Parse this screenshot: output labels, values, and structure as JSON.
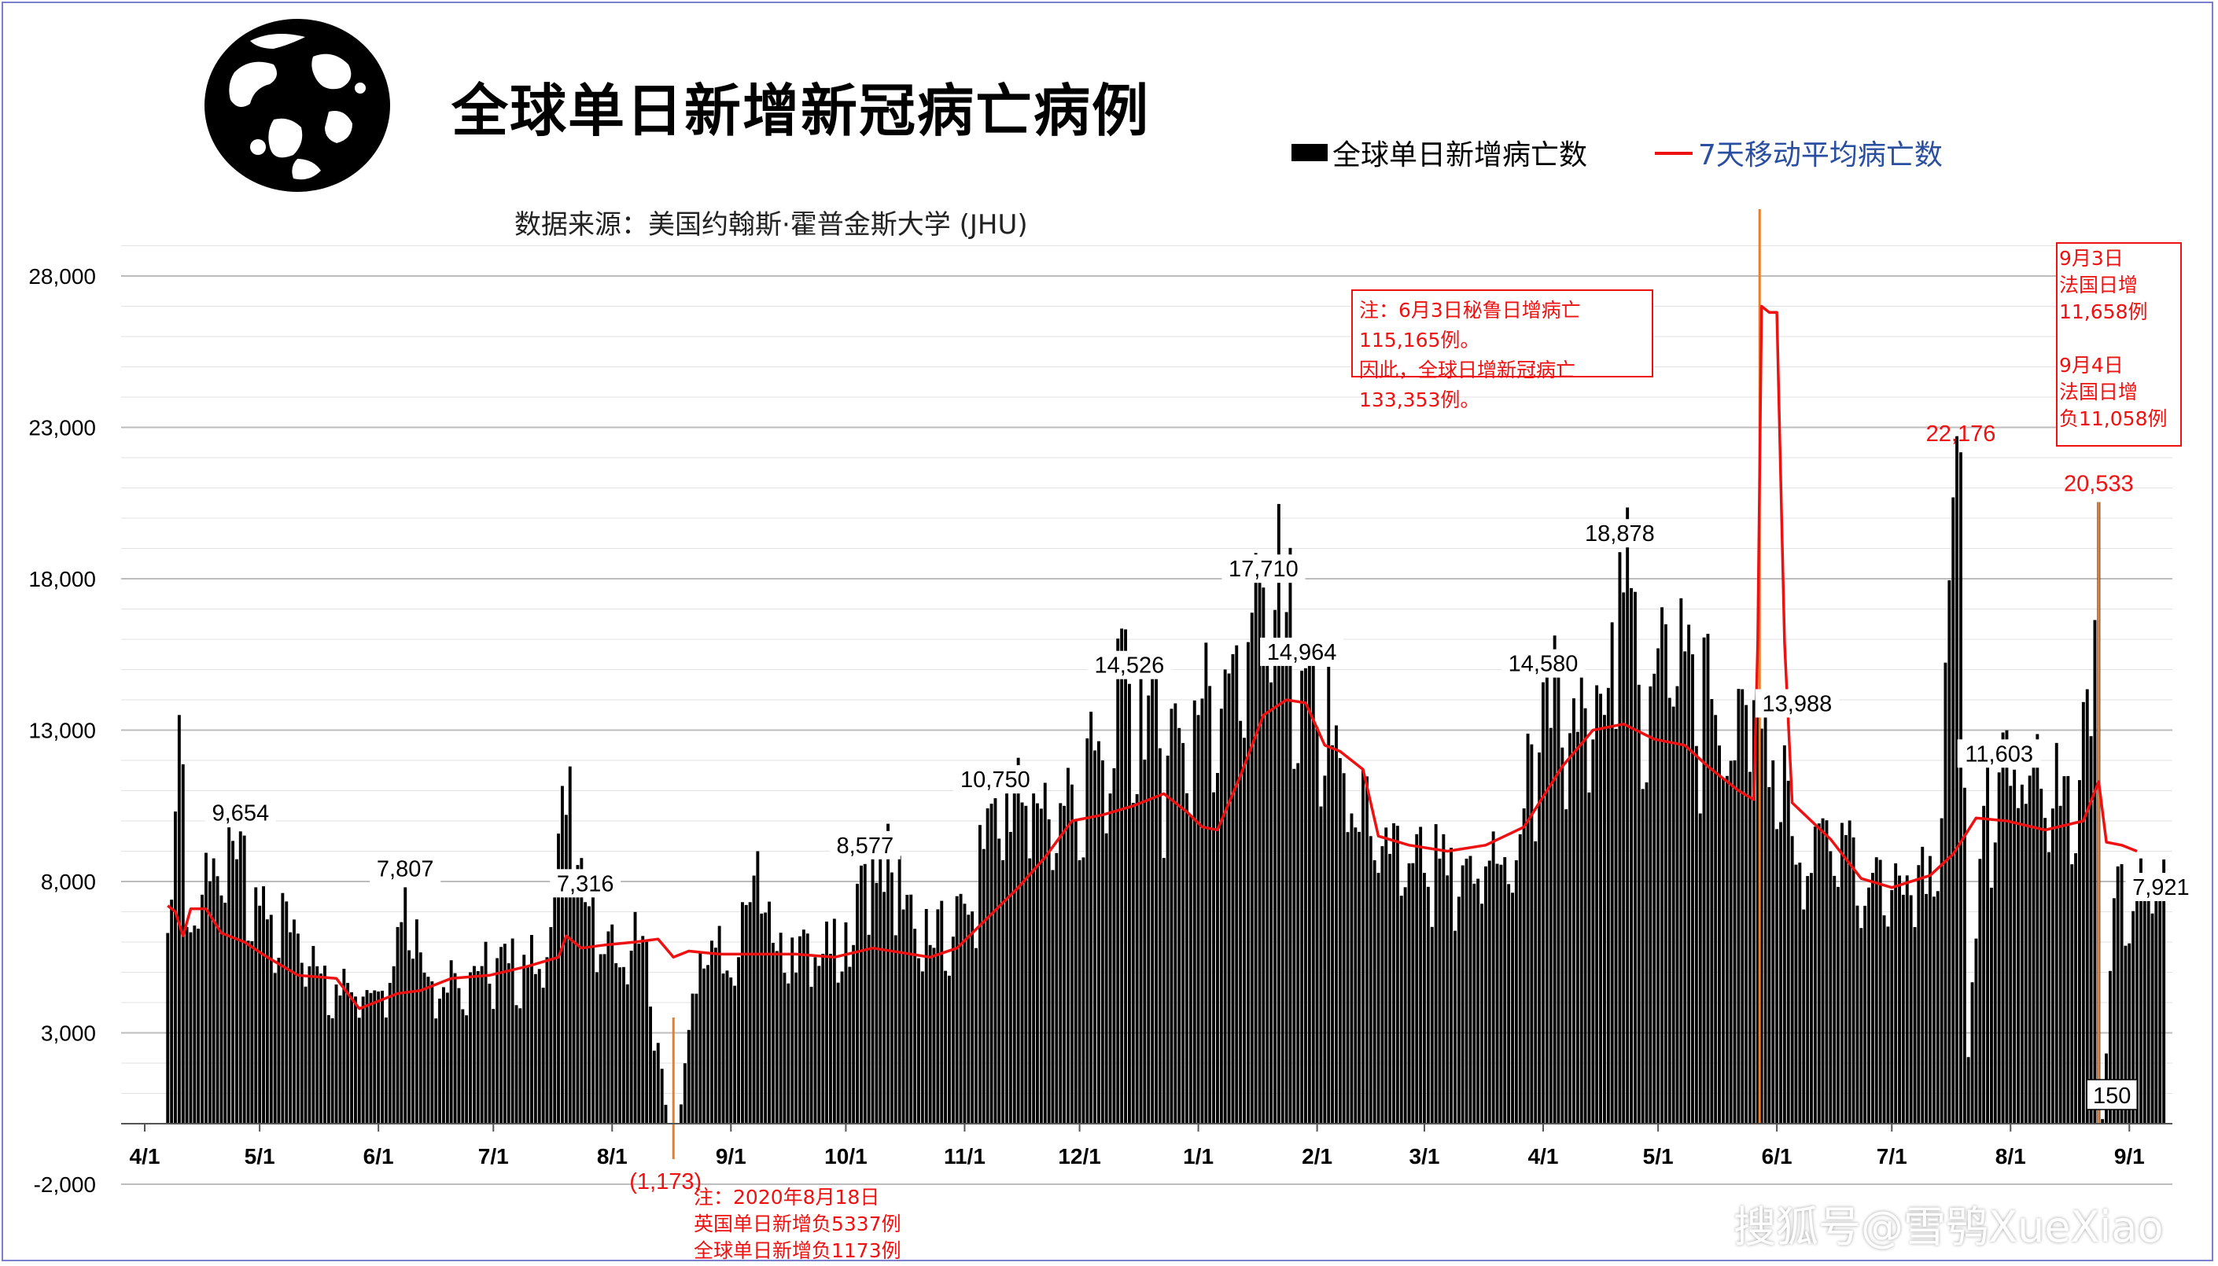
{
  "header": {
    "title": "全球单日新增新冠病亡病例",
    "source": "数据来源：美国约翰斯·霍普金斯大学 (JHU)"
  },
  "legend": {
    "bar_label": "全球单日新增病亡数",
    "line_label": "7天移动平均病亡数",
    "bar_color": "#000000",
    "line_color": "#ee1111"
  },
  "notes": {
    "peru_line1": "注：6月3日秘鲁日增病亡115,165例。",
    "peru_line2": "因此，全球日增新冠病亡133,353例。",
    "france": [
      "9月3日",
      "法国日增",
      "11,658例",
      "",
      "9月4日",
      "法国日增",
      "负11,058例"
    ],
    "uk": [
      "注：2020年8月18日",
      "英国单日新增负5337例",
      "全球单日新增负1173例"
    ]
  },
  "watermark": "搜狐号@雪鸮XueXiao",
  "chart_data": {
    "type": "bar",
    "title": "全球单日新增新冠病亡病例",
    "ylim": [
      -2000,
      30000
    ],
    "y_ticks": [
      "-2,000",
      "3,000",
      "8,000",
      "13,000",
      "18,000",
      "23,000",
      "28,000"
    ],
    "y_tick_values": [
      -2000,
      3000,
      8000,
      13000,
      18000,
      23000,
      28000
    ],
    "x_ticks": [
      "4/1",
      "5/1",
      "6/1",
      "7/1",
      "8/1",
      "9/1",
      "10/1",
      "11/1",
      "12/1",
      "1/1",
      "2/1",
      "3/1",
      "4/1",
      "5/1",
      "6/1",
      "7/1",
      "8/1",
      "9/1"
    ],
    "x_tick_days": [
      0,
      30,
      61,
      91,
      122,
      153,
      183,
      214,
      244,
      275,
      306,
      334,
      365,
      395,
      426,
      456,
      487,
      518
    ],
    "x_range_days": [
      0,
      528
    ],
    "grid": true,
    "series": [
      {
        "name": "全球单日新增病亡数",
        "type": "bar",
        "color": "#000000",
        "points": [
          [
            7,
            7400
          ],
          [
            9,
            13500
          ],
          [
            11,
            6500
          ],
          [
            25,
            9654
          ],
          [
            30,
            7200
          ],
          [
            45,
            5200
          ],
          [
            55,
            4200
          ],
          [
            65,
            5200
          ],
          [
            68,
            7807
          ],
          [
            75,
            4700
          ],
          [
            85,
            5000
          ],
          [
            95,
            5300
          ],
          [
            105,
            5500
          ],
          [
            111,
            11800
          ],
          [
            115,
            7316
          ],
          [
            120,
            5600
          ],
          [
            130,
            6200
          ],
          [
            138,
            -1173
          ],
          [
            145,
            5700
          ],
          [
            155,
            5500
          ],
          [
            160,
            9000
          ],
          [
            165,
            5700
          ],
          [
            175,
            5500
          ],
          [
            185,
            5900
          ],
          [
            188,
            8577
          ],
          [
            195,
            8300
          ],
          [
            205,
            5900
          ],
          [
            215,
            6900
          ],
          [
            222,
            10750
          ],
          [
            230,
            10500
          ],
          [
            240,
            10500
          ],
          [
            250,
            12000
          ],
          [
            257,
            14526
          ],
          [
            265,
            12400
          ],
          [
            275,
            13500
          ],
          [
            285,
            15800
          ],
          [
            292,
            17710
          ],
          [
            298,
            16900
          ],
          [
            302,
            14964
          ],
          [
            310,
            12500
          ],
          [
            320,
            9500
          ],
          [
            330,
            8600
          ],
          [
            340,
            8200
          ],
          [
            350,
            8500
          ],
          [
            358,
            8700
          ],
          [
            365,
            14580
          ],
          [
            372,
            12900
          ],
          [
            380,
            14200
          ],
          [
            385,
            18878
          ],
          [
            390,
            14500
          ],
          [
            395,
            15700
          ],
          [
            402,
            15600
          ],
          [
            410,
            13500
          ],
          [
            415,
            12000
          ],
          [
            420,
            13988
          ],
          [
            425,
            12000
          ],
          [
            430,
            9500
          ],
          [
            440,
            9000
          ],
          [
            450,
            7800
          ],
          [
            460,
            8200
          ],
          [
            467,
            7500
          ],
          [
            474,
            22176
          ],
          [
            476,
            2200
          ],
          [
            480,
            10500
          ],
          [
            484,
            11603
          ],
          [
            490,
            11200
          ],
          [
            500,
            10500
          ],
          [
            508,
            12800
          ],
          [
            510,
            20533
          ],
          [
            511,
            150
          ],
          [
            515,
            8500
          ],
          [
            520,
            7500
          ],
          [
            525,
            7921
          ]
        ]
      },
      {
        "name": "7天移动平均病亡数",
        "type": "line",
        "color": "#ee1111",
        "points": [
          [
            6,
            7200
          ],
          [
            8,
            7000
          ],
          [
            10,
            6200
          ],
          [
            12,
            7100
          ],
          [
            16,
            7100
          ],
          [
            20,
            6300
          ],
          [
            26,
            6000
          ],
          [
            32,
            5500
          ],
          [
            40,
            4900
          ],
          [
            50,
            4800
          ],
          [
            56,
            3800
          ],
          [
            60,
            4000
          ],
          [
            66,
            4300
          ],
          [
            72,
            4400
          ],
          [
            80,
            4800
          ],
          [
            90,
            4900
          ],
          [
            100,
            5200
          ],
          [
            108,
            5500
          ],
          [
            110,
            6200
          ],
          [
            114,
            5800
          ],
          [
            120,
            5900
          ],
          [
            128,
            6000
          ],
          [
            134,
            6100
          ],
          [
            138,
            5500
          ],
          [
            142,
            5700
          ],
          [
            150,
            5600
          ],
          [
            160,
            5600
          ],
          [
            170,
            5600
          ],
          [
            180,
            5500
          ],
          [
            190,
            5800
          ],
          [
            200,
            5600
          ],
          [
            205,
            5500
          ],
          [
            212,
            5800
          ],
          [
            220,
            6800
          ],
          [
            228,
            7800
          ],
          [
            235,
            8800
          ],
          [
            242,
            10000
          ],
          [
            250,
            10200
          ],
          [
            258,
            10500
          ],
          [
            266,
            10900
          ],
          [
            272,
            10300
          ],
          [
            276,
            9800
          ],
          [
            280,
            9700
          ],
          [
            286,
            11500
          ],
          [
            292,
            13500
          ],
          [
            298,
            14000
          ],
          [
            303,
            13900
          ],
          [
            308,
            12500
          ],
          [
            312,
            12300
          ],
          [
            318,
            11700
          ],
          [
            322,
            9500
          ],
          [
            330,
            9200
          ],
          [
            340,
            9000
          ],
          [
            350,
            9200
          ],
          [
            360,
            9800
          ],
          [
            370,
            11800
          ],
          [
            378,
            13000
          ],
          [
            386,
            13200
          ],
          [
            394,
            12700
          ],
          [
            402,
            12500
          ],
          [
            408,
            11800
          ],
          [
            416,
            11000
          ],
          [
            420,
            10700
          ],
          [
            421,
            15900
          ],
          [
            422,
            27000
          ],
          [
            424,
            26800
          ],
          [
            426,
            26800
          ],
          [
            428,
            15900
          ],
          [
            430,
            10600
          ],
          [
            440,
            9400
          ],
          [
            448,
            8100
          ],
          [
            456,
            7800
          ],
          [
            466,
            8200
          ],
          [
            472,
            8900
          ],
          [
            478,
            10100
          ],
          [
            486,
            10000
          ],
          [
            496,
            9700
          ],
          [
            506,
            10000
          ],
          [
            510,
            11300
          ],
          [
            512,
            9300
          ],
          [
            516,
            9200
          ],
          [
            520,
            9000
          ]
        ]
      }
    ],
    "annotations": [
      {
        "text": "9,654",
        "x": 25,
        "y": 9654
      },
      {
        "text": "7,807",
        "x": 68,
        "y": 7807
      },
      {
        "text": "7,316",
        "x": 115,
        "y": 7316
      },
      {
        "text": "8,577",
        "x": 188,
        "y": 8577
      },
      {
        "text": "10,750",
        "x": 222,
        "y": 10750
      },
      {
        "text": "14,526",
        "x": 257,
        "y": 14526
      },
      {
        "text": "17,710",
        "x": 292,
        "y": 17710
      },
      {
        "text": "14,964",
        "x": 302,
        "y": 14964
      },
      {
        "text": "14,580",
        "x": 365,
        "y": 14580
      },
      {
        "text": "18,878",
        "x": 385,
        "y": 18878
      },
      {
        "text": "13,988",
        "x": 420,
        "y": 13988
      },
      {
        "text": "22,176",
        "x": 474,
        "y": 22176,
        "color": "#ee1111"
      },
      {
        "text": "11,603",
        "x": 484,
        "y": 11603
      },
      {
        "text": "20,533",
        "x": 510,
        "y": 20533,
        "color": "#ee1111"
      },
      {
        "text": "7,921",
        "x": 525,
        "y": 7921
      },
      {
        "text": "150",
        "x": 511,
        "y": 150
      },
      {
        "text": "(1,173)",
        "x": 138,
        "y": -1173,
        "color": "#ee1111"
      }
    ]
  }
}
